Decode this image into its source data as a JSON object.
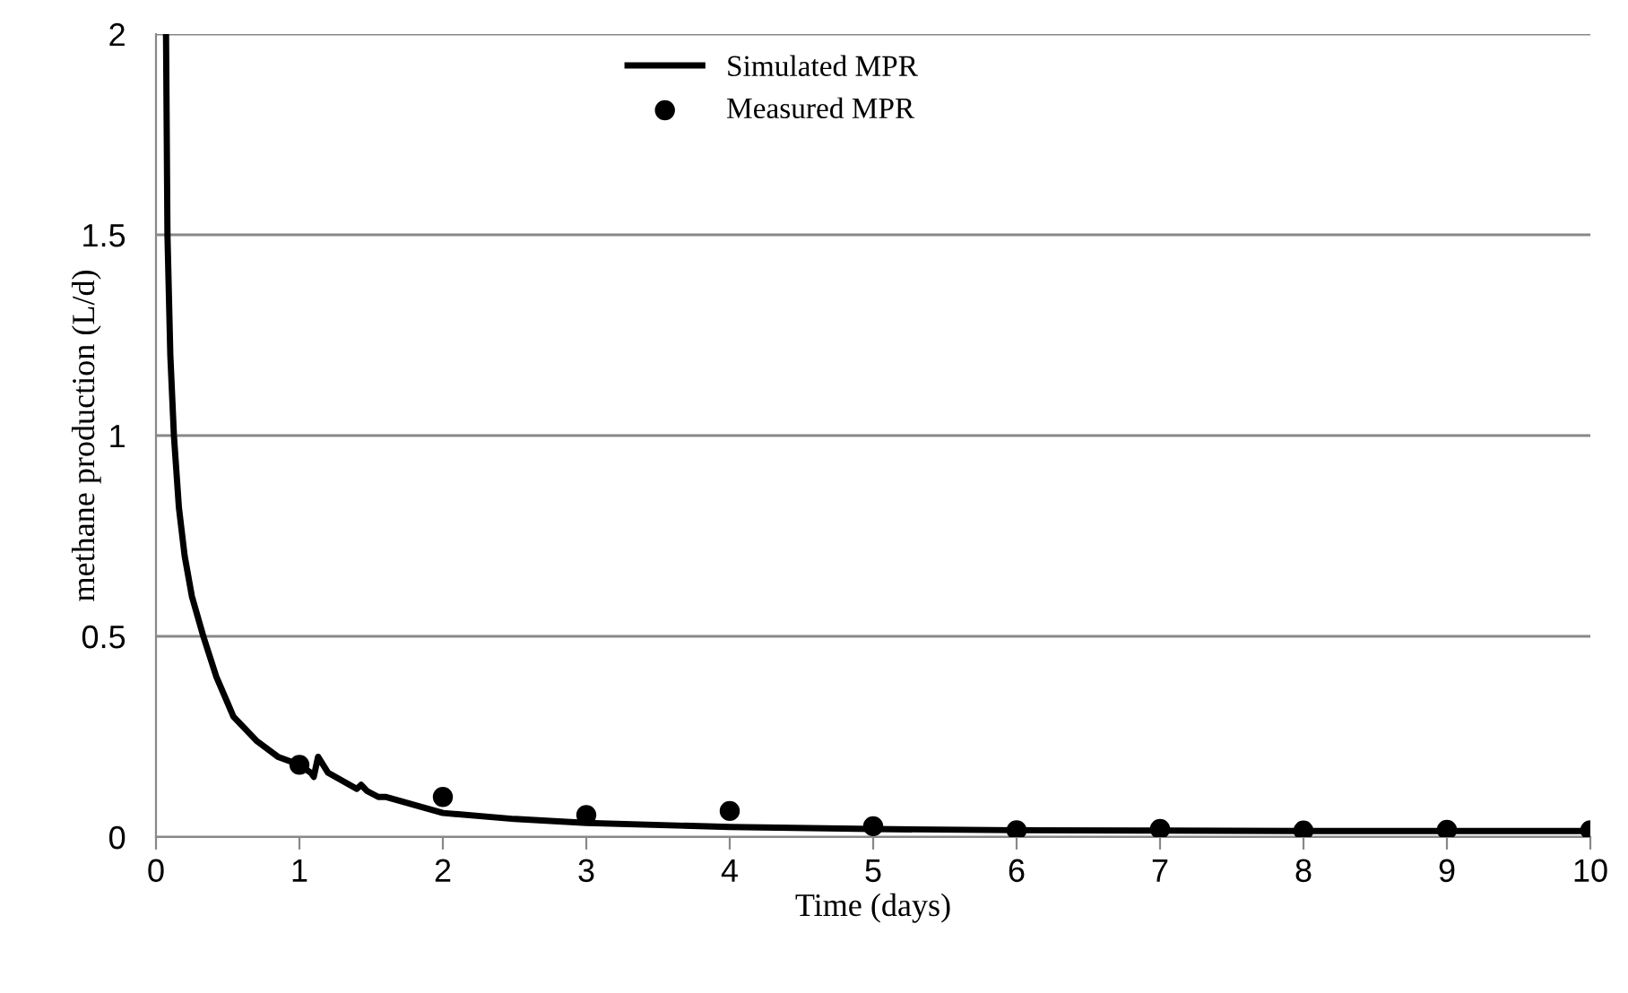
{
  "chart_data": {
    "type": "line",
    "xlabel": "Time (days)",
    "ylabel": "methane production (L/d)",
    "xlim": [
      0,
      10
    ],
    "ylim": [
      0,
      2
    ],
    "xticks": [
      0,
      1,
      2,
      3,
      4,
      5,
      6,
      7,
      8,
      9,
      10
    ],
    "yticks": [
      0,
      {
        "value": 0.5,
        "label": "0.5"
      },
      1,
      {
        "value": 1.5,
        "label": "1.5"
      },
      2
    ],
    "grid": "y",
    "legend": "top",
    "tick_labels": true,
    "series": [
      {
        "name": "Simulated MPR",
        "color": "#000000",
        "marker": "none",
        "line_style": "solid",
        "x": [
          0.07,
          0.08,
          0.1,
          0.125,
          0.16,
          0.2,
          0.25,
          0.33,
          0.42,
          0.54,
          0.7,
          0.85,
          1.0,
          1.08,
          1.1,
          1.13,
          1.2,
          1.3,
          1.4,
          1.43,
          1.47,
          1.55,
          1.6,
          1.65,
          1.7,
          1.8,
          2.0,
          2.5,
          3.0,
          4.0,
          5.0,
          6.0,
          7.0,
          8.0,
          9.0,
          10.0
        ],
        "values": [
          2.0,
          1.5,
          1.2,
          1.0,
          0.82,
          0.7,
          0.6,
          0.5,
          0.4,
          0.3,
          0.24,
          0.2,
          0.18,
          0.16,
          0.15,
          0.2,
          0.16,
          0.14,
          0.12,
          0.13,
          0.115,
          0.1,
          0.1,
          0.095,
          0.09,
          0.08,
          0.06,
          0.045,
          0.035,
          0.025,
          0.02,
          0.017,
          0.016,
          0.015,
          0.015,
          0.015
        ]
      },
      {
        "name": "Measured MPR",
        "type": "scatter",
        "color": "#000000",
        "marker": "circle",
        "x": [
          1,
          2,
          3,
          4,
          5,
          6,
          7,
          8,
          9,
          10
        ],
        "values": [
          0.18,
          0.1,
          0.055,
          0.065,
          0.027,
          0.017,
          0.02,
          0.016,
          0.018,
          0.017
        ]
      }
    ]
  }
}
